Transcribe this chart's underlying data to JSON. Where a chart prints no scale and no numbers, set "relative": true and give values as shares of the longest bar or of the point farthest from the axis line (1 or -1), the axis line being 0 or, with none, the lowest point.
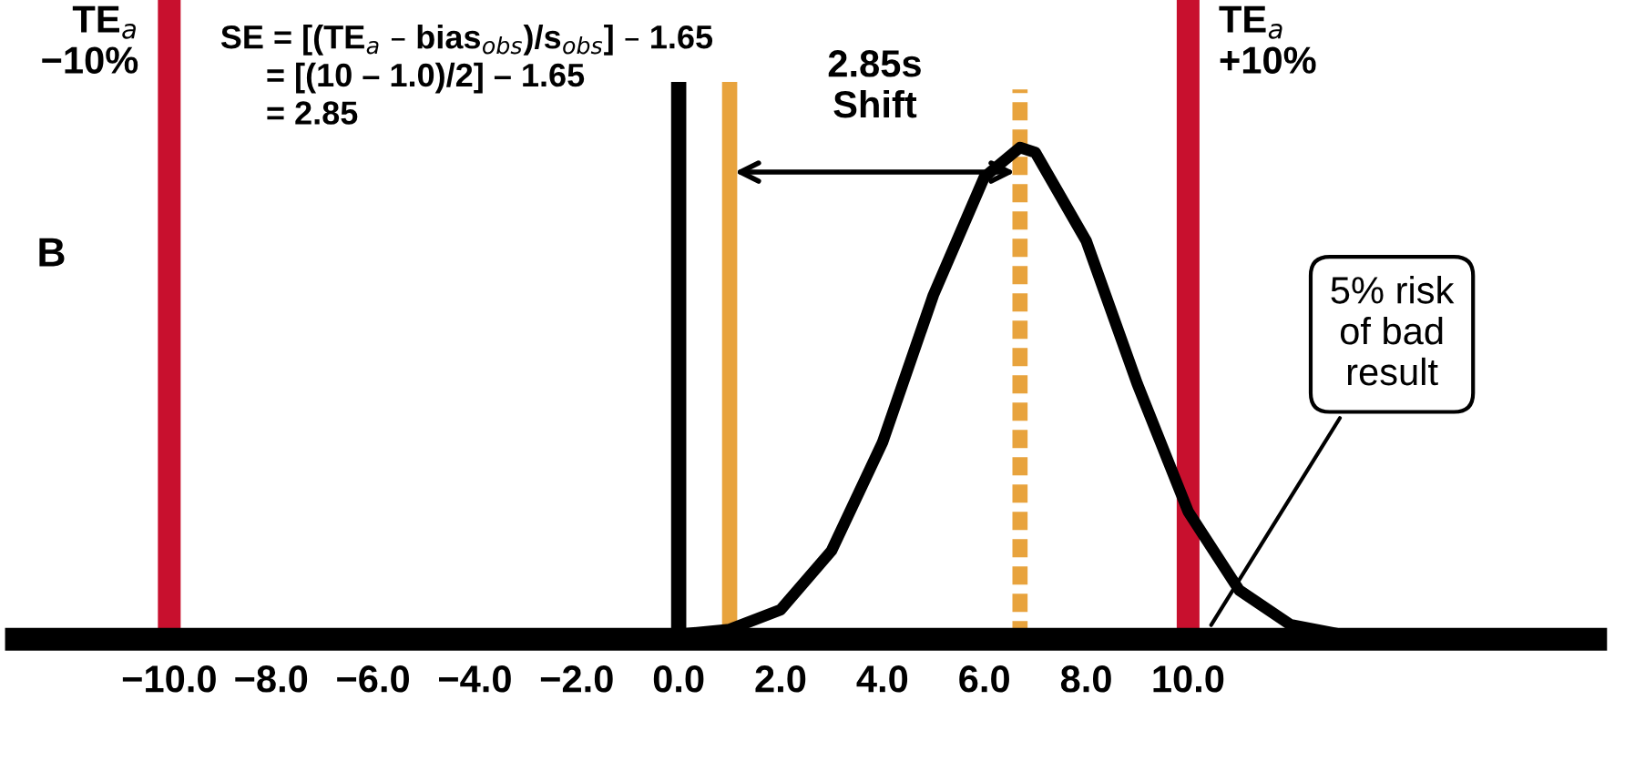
{
  "chart_data": {
    "type": "line",
    "relative": true,
    "x": [
      0,
      1,
      2,
      3,
      4,
      5,
      6,
      6.7,
      7,
      8,
      9,
      10,
      11,
      12,
      13,
      14
    ],
    "series": [
      {
        "color": "#000000",
        "values": [
          0.01,
          0.02,
          0.06,
          0.18,
          0.4,
          0.7,
          0.94,
          1.0,
          0.99,
          0.81,
          0.52,
          0.26,
          0.1,
          0.03,
          0.01,
          0.0
        ]
      }
    ],
    "xlim": [
      -13,
      18
    ],
    "xticks": [
      {
        "value": -10,
        "label": "−10.0"
      },
      {
        "value": -8,
        "label": "−8.0"
      },
      {
        "value": -6,
        "label": "−6.0"
      },
      {
        "value": -4,
        "label": "−4.0"
      },
      {
        "value": -2,
        "label": "−2.0"
      },
      {
        "value": 0,
        "label": "0.0"
      },
      {
        "value": 2,
        "label": "2.0"
      },
      {
        "value": 4,
        "label": "4.0"
      },
      {
        "value": 6,
        "label": "6.0"
      },
      {
        "value": 8,
        "label": "8.0"
      },
      {
        "value": 10,
        "label": "10.0"
      }
    ],
    "ref_lines": [
      {
        "axis": "x",
        "value": -10,
        "label": "TE$_{a}$\n−10%",
        "color": "#c8102e"
      },
      {
        "axis": "x",
        "value": 10,
        "label": "TE$_{a}$\n+10%",
        "color": "#c8102e"
      },
      {
        "axis": "x",
        "value": 0,
        "color": "#000000"
      },
      {
        "axis": "x",
        "value": 1.0,
        "color": "#e8a33d"
      },
      {
        "axis": "x",
        "value": 6.7,
        "color": "#e8a33d",
        "line_style": "dashed"
      }
    ],
    "annotations": [
      "SE = [(TE$_{a}$ – bias$_{obs}$)/s$_{obs}$] – 1.65\n     = [(10 – 1.0)/2] – 1.65\n     = 2.85",
      "B",
      {
        "text": "2.85s\nShift",
        "x": 6.7,
        "y": 1.08
      },
      {
        "text": "5% risk\nof bad\nresult",
        "x": 10.4,
        "y": 0.02
      }
    ],
    "grid": false,
    "legend": false,
    "marker": "none",
    "line_style": "solid"
  }
}
